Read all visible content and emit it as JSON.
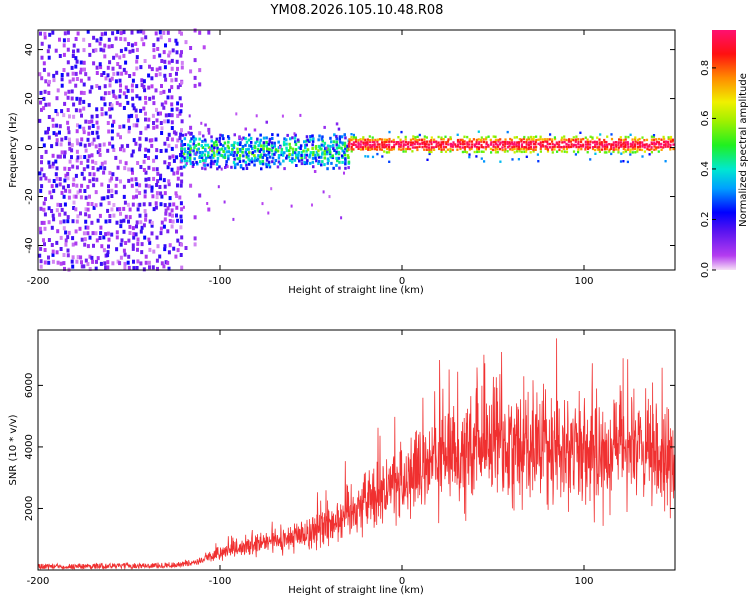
{
  "title": "YM08.2026.105.10.48.R08",
  "colors": {
    "signal": "#f03030",
    "frame": "#000000",
    "background": "#ffffff"
  },
  "chart_data": [
    {
      "type": "heatmap",
      "name": "spectrogram",
      "xlabel": "Height of straight line (km)",
      "ylabel": "Frequency (Hz)",
      "xlim": [
        -200,
        150
      ],
      "ylim": [
        -50,
        48
      ],
      "xticks": [
        -200,
        -100,
        0,
        100
      ],
      "xtick_labels": [
        "-200",
        "-100",
        "0",
        "100"
      ],
      "yticks": [
        -40,
        -20,
        0,
        20,
        40
      ],
      "ytick_labels": [
        "-40",
        "-20",
        "0",
        "20",
        "40"
      ],
      "colorbar": {
        "label": "Normalized spectral amplitude",
        "range": [
          0.0,
          0.95
        ],
        "ticks": [
          0.0,
          0.2,
          0.4,
          0.6,
          0.8
        ],
        "tick_labels": [
          "0.0",
          "0.2",
          "0.4",
          "0.6",
          "0.8"
        ],
        "colormap": "rainbow (magenta-blue-cyan-green-yellow-red-pink)"
      },
      "regions": [
        {
          "x_from": -200,
          "x_to": -122,
          "band": "broadband noise, full frequency range",
          "amplitude": 0.15
        },
        {
          "x_from": -122,
          "x_to": -30,
          "band": "signal centered near 0 Hz, width about +/-8 Hz",
          "amplitude": 0.25
        },
        {
          "x_from": -30,
          "x_to": 150,
          "band": "narrow carrier near 0 Hz, width about +/-4 Hz",
          "amplitude": 0.85
        }
      ]
    },
    {
      "type": "line",
      "name": "snr",
      "xlabel": "Height of straight line (km)",
      "ylabel": "SNR (10 * v/v)",
      "xlim": [
        -200,
        150
      ],
      "ylim": [
        0,
        7800
      ],
      "xticks": [
        -200,
        -100,
        0,
        100
      ],
      "xtick_labels": [
        "-200",
        "-100",
        "0",
        "100"
      ],
      "yticks": [
        2000,
        4000,
        6000
      ],
      "ytick_labels": [
        "2000",
        "4000",
        "6000"
      ],
      "x": [
        -200,
        -180,
        -160,
        -140,
        -120,
        -110,
        -100,
        -90,
        -80,
        -70,
        -60,
        -50,
        -40,
        -30,
        -20,
        -10,
        0,
        10,
        20,
        30,
        40,
        50,
        60,
        70,
        80,
        90,
        100,
        110,
        120,
        130,
        140,
        150
      ],
      "y": [
        120,
        120,
        130,
        140,
        180,
        320,
        550,
        650,
        800,
        950,
        1050,
        1250,
        1500,
        1900,
        2300,
        2600,
        2900,
        3200,
        3600,
        3800,
        4000,
        4200,
        4100,
        4200,
        3900,
        4000,
        3800,
        3900,
        4100,
        3800,
        3600,
        3700
      ]
    }
  ]
}
